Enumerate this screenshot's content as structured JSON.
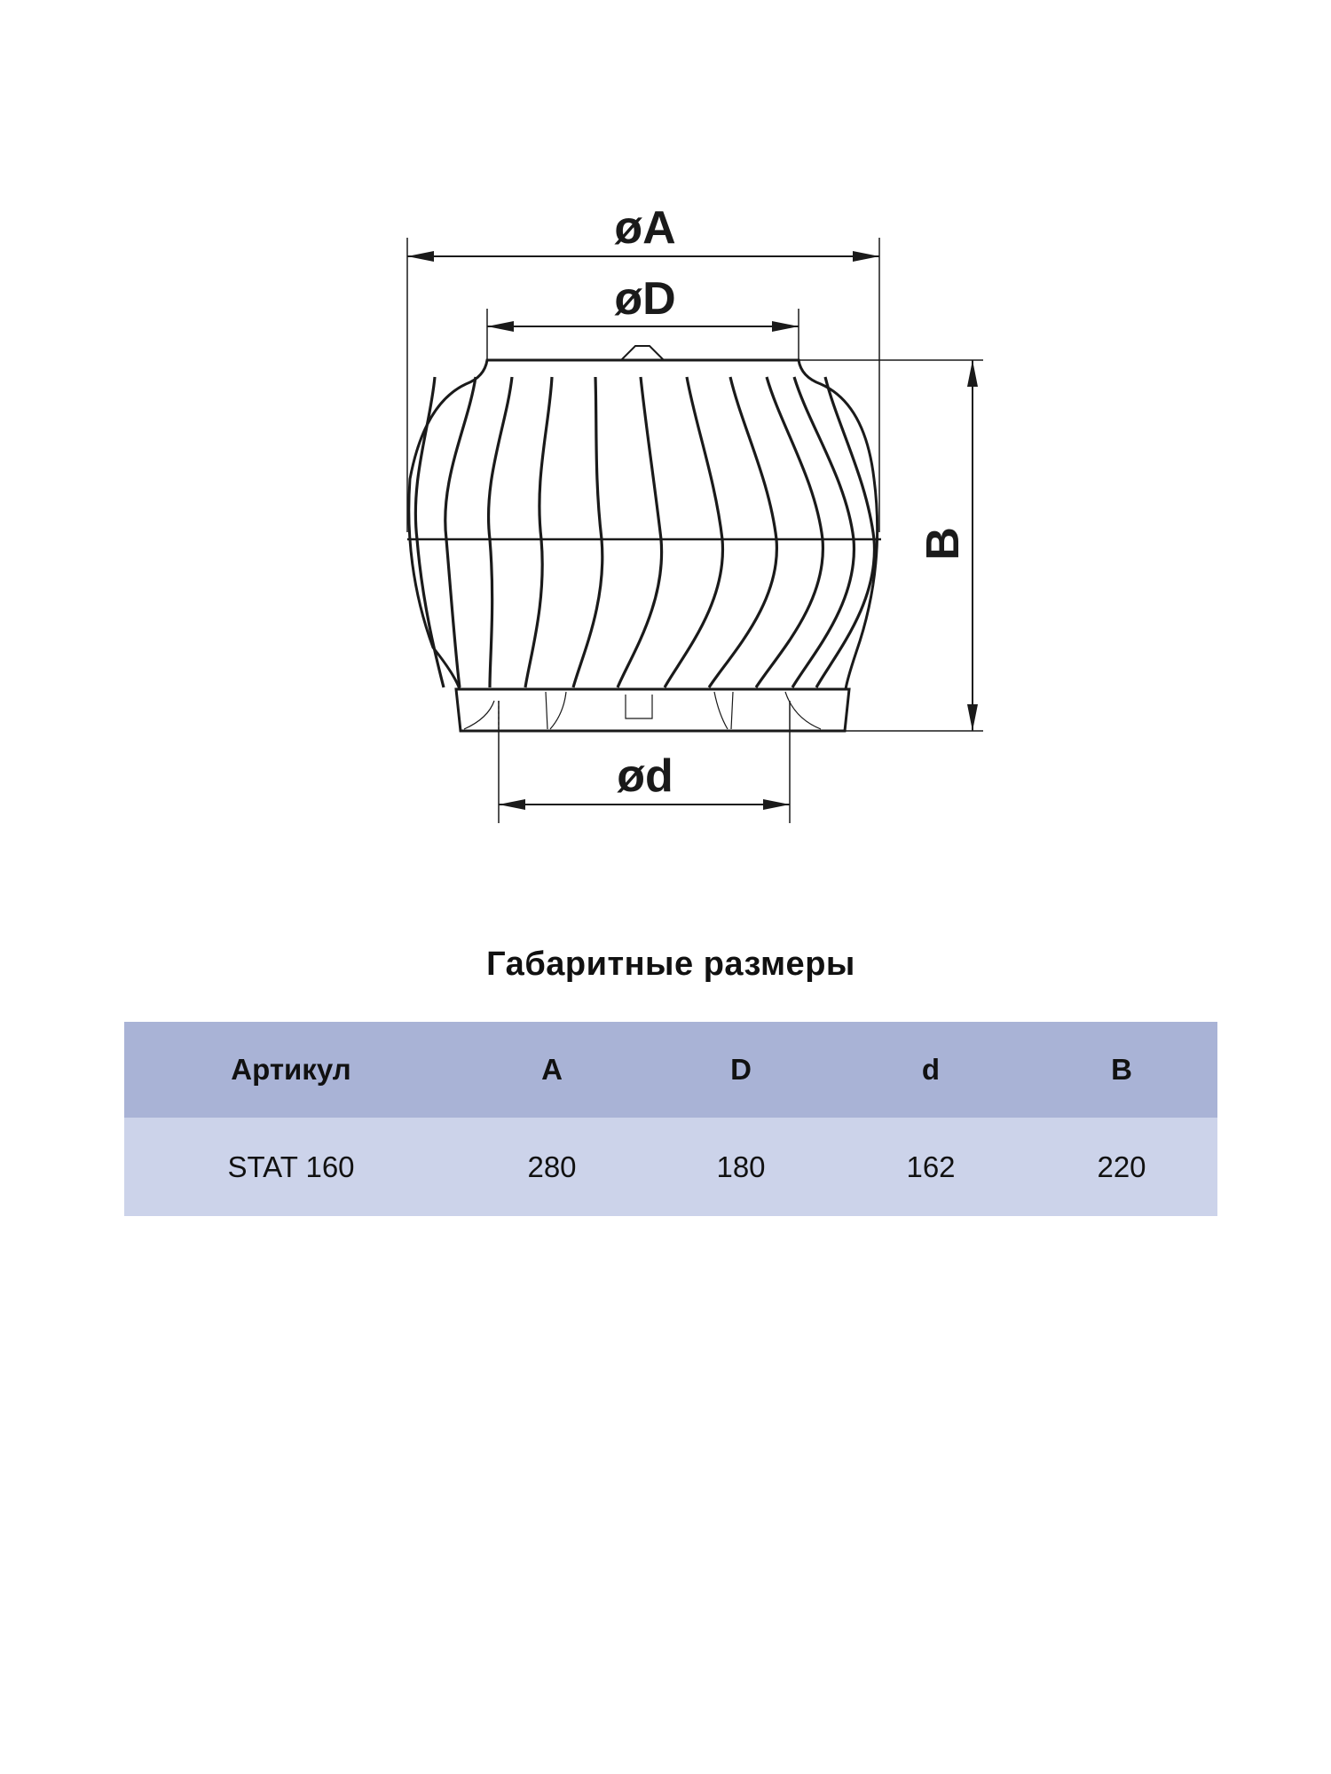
{
  "drawing": {
    "labels": {
      "outer_diameter": "øA",
      "top_diameter": "øD",
      "base_diameter": "ød",
      "height": "B"
    }
  },
  "title": "Габаритные размеры",
  "table": {
    "headers": [
      "Артикул",
      "A",
      "D",
      "d",
      "B"
    ],
    "rows": [
      [
        "STAT 160",
        "280",
        "180",
        "162",
        "220"
      ]
    ]
  },
  "colors": {
    "header_bg": "#a9b3d6",
    "row_bg": "#ccd3ea",
    "line": "#1a1a1a"
  }
}
